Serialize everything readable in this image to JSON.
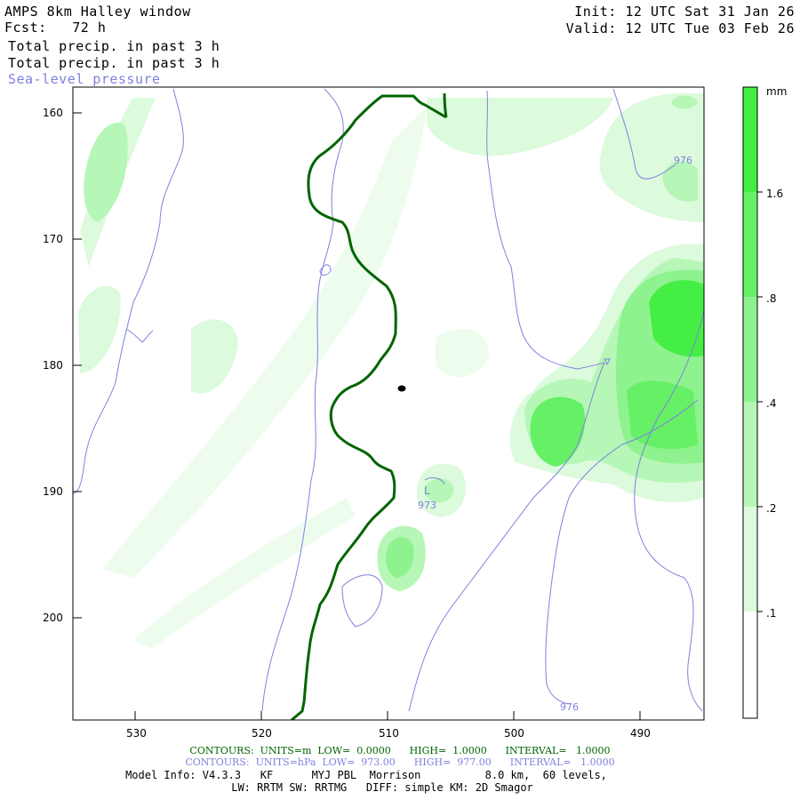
{
  "header": {
    "title": "AMPS 8km Halley window",
    "forecast_label": "Fcst:",
    "forecast_value": "72 h",
    "field1": "Total precip. in past 3 h",
    "field2": "Total precip. in past 3 h",
    "field3": "Sea-level pressure",
    "init_label": "Init:",
    "init_value": "12 UTC Sat 31 Jan 26",
    "valid_label": "Valid:",
    "valid_value": "12 UTC Tue 03 Feb 26"
  },
  "axes": {
    "y_ticks": [
      "160",
      "170",
      "180",
      "190",
      "200"
    ],
    "x_ticks": [
      "530",
      "520",
      "510",
      "500",
      "490"
    ]
  },
  "colorbar": {
    "unit": "mm",
    "labels": [
      "1.6",
      ".8",
      ".4",
      ".2",
      ".1"
    ],
    "colors": [
      "#44ee44",
      "#66f066",
      "#8ef28e",
      "#b6f6b6",
      "#dcfadc",
      "#ffffff"
    ]
  },
  "contour_labels": {
    "low_marker": "L",
    "low_value": "973",
    "isobar_976_a": "976",
    "isobar_976_b": "976"
  },
  "footer": {
    "contours_green": "CONTOURS:  UNITS=m  LOW=  0.0000      HIGH=  1.0000      INTERVAL=   1.0000",
    "contours_blue": "CONTOURS:  UNITS=hPa  LOW=  973.00      HIGH=  977.00      INTERVAL=   1.0000",
    "model_info": "Model Info: V4.3.3   KF      MYJ PBL  Morrison          8.0 km,  60 levels,",
    "physics": "LW: RRTM SW: RRTMG   DIFF: simple KM: 2D Smagor"
  },
  "colors": {
    "terrain_contour": "#006400",
    "isobar": "#8080e0"
  }
}
